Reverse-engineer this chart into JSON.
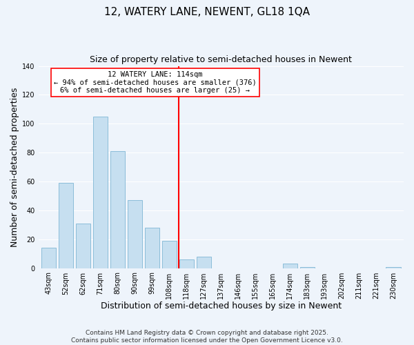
{
  "title": "12, WATERY LANE, NEWENT, GL18 1QA",
  "subtitle": "Size of property relative to semi-detached houses in Newent",
  "xlabel": "Distribution of semi-detached houses by size in Newent",
  "ylabel": "Number of semi-detached properties",
  "bar_labels": [
    "43sqm",
    "52sqm",
    "62sqm",
    "71sqm",
    "80sqm",
    "90sqm",
    "99sqm",
    "108sqm",
    "118sqm",
    "127sqm",
    "137sqm",
    "146sqm",
    "155sqm",
    "165sqm",
    "174sqm",
    "183sqm",
    "193sqm",
    "202sqm",
    "211sqm",
    "221sqm",
    "230sqm"
  ],
  "bar_values": [
    14,
    59,
    31,
    105,
    81,
    47,
    28,
    19,
    6,
    8,
    0,
    0,
    0,
    0,
    3,
    1,
    0,
    0,
    0,
    0,
    1
  ],
  "bar_color": "#c6dff0",
  "bar_edge_color": "#8bbdd9",
  "ylim": [
    0,
    140
  ],
  "yticks": [
    0,
    20,
    40,
    60,
    80,
    100,
    120,
    140
  ],
  "vline_x_index": 7.55,
  "annotation_line1": "12 WATERY LANE: 114sqm",
  "annotation_line2": "← 94% of semi-detached houses are smaller (376)",
  "annotation_line3": "6% of semi-detached houses are larger (25) →",
  "footer1": "Contains HM Land Registry data © Crown copyright and database right 2025.",
  "footer2": "Contains public sector information licensed under the Open Government Licence v3.0.",
  "background_color": "#eef4fb",
  "grid_color": "#ffffff",
  "title_fontsize": 11,
  "subtitle_fontsize": 9,
  "axis_label_fontsize": 9,
  "tick_fontsize": 7,
  "annotation_fontsize": 7.5,
  "footer_fontsize": 6.5
}
